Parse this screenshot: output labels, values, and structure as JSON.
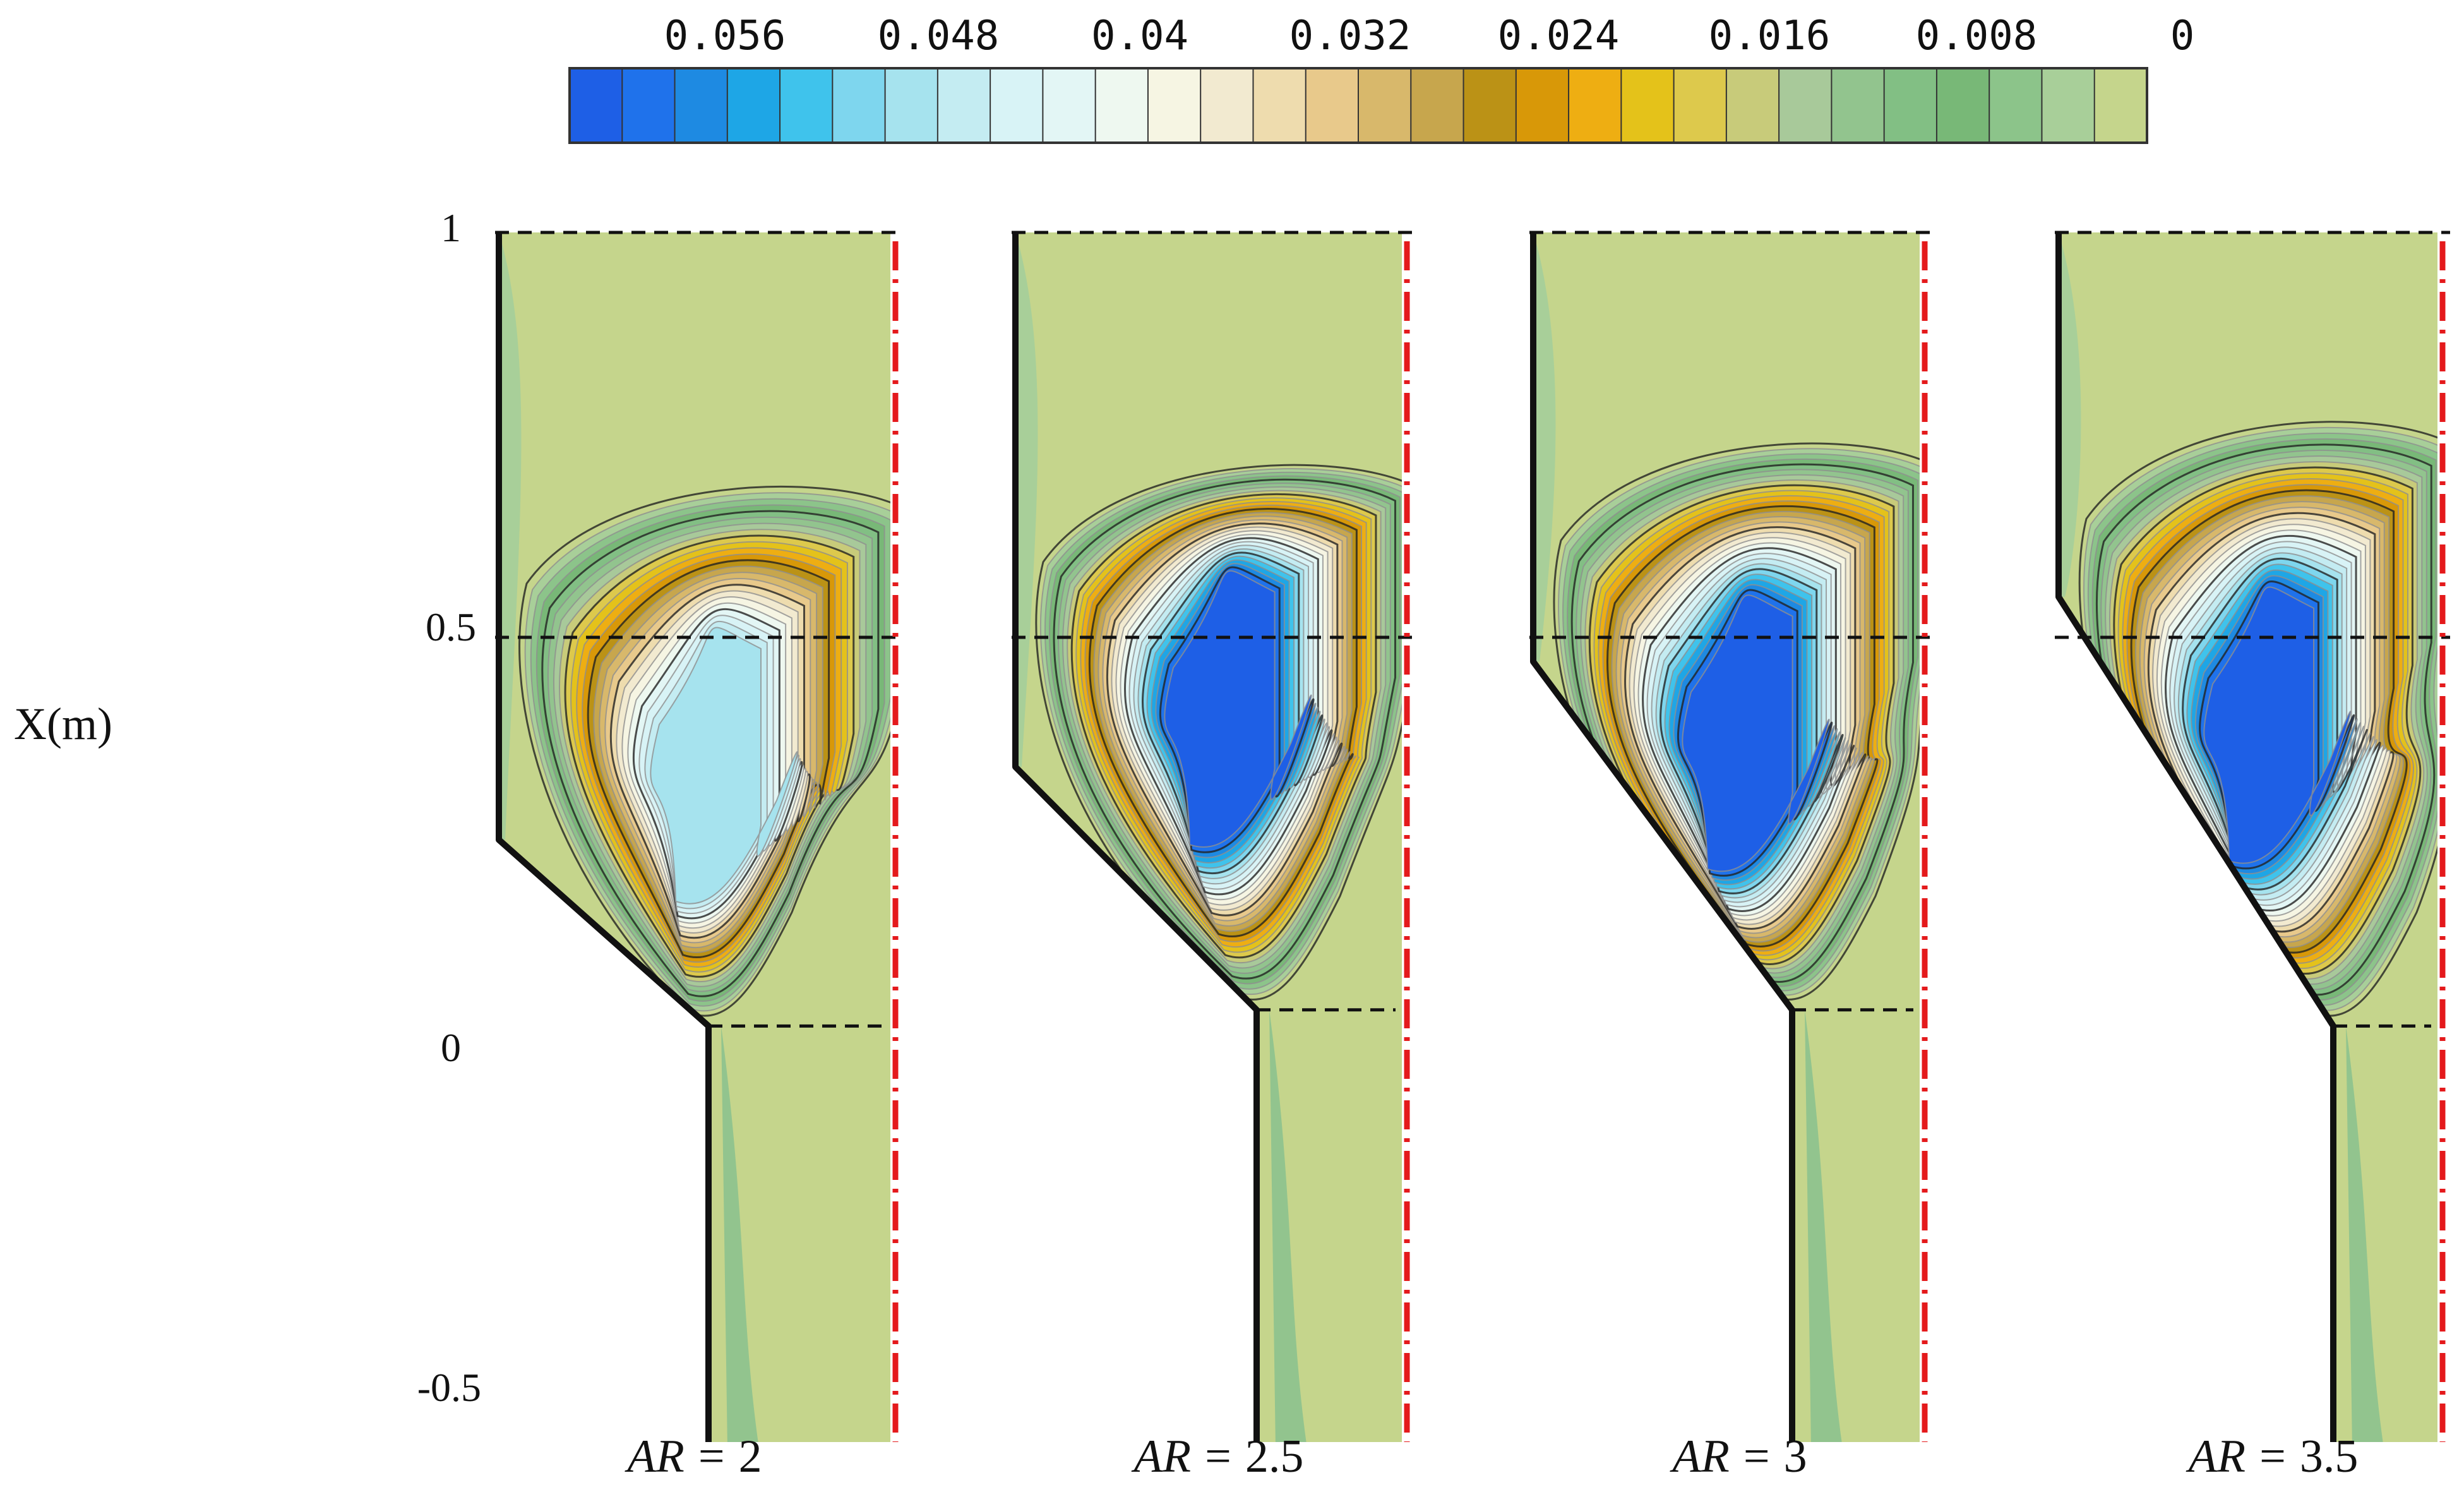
{
  "chart_data": {
    "type": "heatmap",
    "colorbar": {
      "tick_labels": [
        "0.056",
        "0.048",
        "0.04",
        "0.032",
        "0.024",
        "0.016",
        "0.008",
        "0"
      ],
      "tick_values": [
        0.056,
        0.048,
        0.04,
        0.032,
        0.024,
        0.016,
        0.008,
        0
      ],
      "range": [
        0.062,
        0
      ],
      "levels": 30,
      "colors": [
        "#1e5fe6",
        "#1f72eb",
        "#1e8ae2",
        "#1ea6e6",
        "#3fc3ec",
        "#7ed6ee",
        "#a6e3ee",
        "#c4ecf2",
        "#d8f3f6",
        "#e3f6f5",
        "#eef8f0",
        "#f6f5e3",
        "#f2ead0",
        "#eedcae",
        "#e8c98b",
        "#d8b86b",
        "#c7a64d",
        "#bb9216",
        "#d89808",
        "#eeae12",
        "#e4c21a",
        "#ddc94c",
        "#c8cb7a",
        "#a8c99a",
        "#92c48e",
        "#82bf84",
        "#78b877",
        "#8cc48a",
        "#a8cf99",
        "#c5d58c"
      ]
    },
    "yaxis": {
      "label": "X(m)",
      "tick_labels": [
        "1",
        "0.5",
        "0",
        "-0.5"
      ],
      "ticks": [
        1,
        0.5,
        0,
        -0.5
      ],
      "ylim": [
        -0.5,
        1
      ]
    },
    "panels": [
      {
        "label_var": "AR",
        "label_rel": "=",
        "label_val": "2",
        "AR": 2,
        "cone_top": 0.25,
        "inlet_top": 0.02,
        "vortex_center": 0.33,
        "vortex_peak": 0.05
      },
      {
        "label_var": "AR",
        "label_rel": "=",
        "label_val": "2.5",
        "AR": 2.5,
        "cone_top": 0.34,
        "inlet_top": 0.04,
        "vortex_center": 0.4,
        "vortex_peak": 0.062
      },
      {
        "label_var": "AR",
        "label_rel": "=",
        "label_val": "3",
        "AR": 3,
        "cone_top": 0.47,
        "inlet_top": 0.04,
        "vortex_center": 0.37,
        "vortex_peak": 0.062
      },
      {
        "label_var": "AR",
        "label_rel": "=",
        "label_val": "3.5",
        "AR": 3.5,
        "cone_top": 0.55,
        "inlet_top": 0.02,
        "vortex_center": 0.38,
        "vortex_peak": 0.062
      }
    ]
  }
}
